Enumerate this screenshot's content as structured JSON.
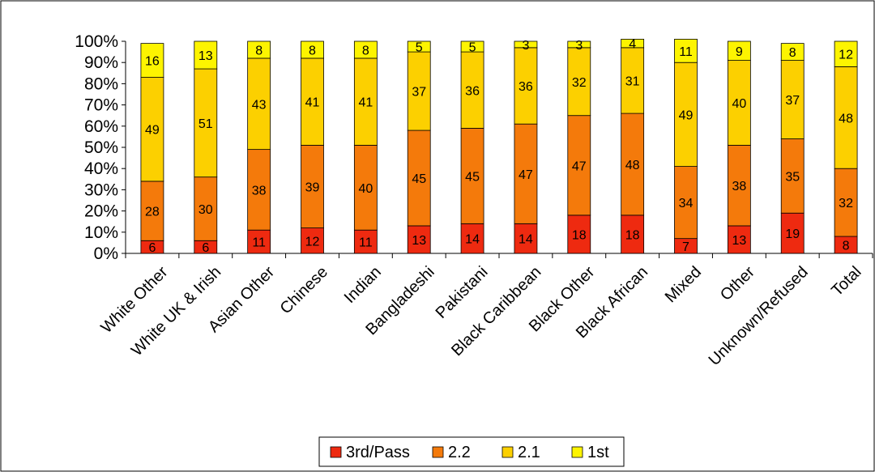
{
  "chart_data": {
    "type": "bar",
    "stacked": true,
    "percent_stacked": true,
    "categories": [
      "White Other",
      "White UK & Irish",
      "Asian Other",
      "Chinese",
      "Indian",
      "Bangladeshi",
      "Pakistani",
      "Black Caribbean",
      "Black Other",
      "Black African",
      "Mixed",
      "Other",
      "Unknown/Refused",
      "Total"
    ],
    "series": [
      {
        "name": "3rd/Pass",
        "color": "#ee2a10",
        "values": [
          6,
          6,
          11,
          12,
          11,
          13,
          14,
          14,
          18,
          18,
          7,
          13,
          19,
          8
        ]
      },
      {
        "name": "2.2",
        "color": "#f47a0b",
        "values": [
          28,
          30,
          38,
          39,
          40,
          45,
          45,
          47,
          47,
          48,
          34,
          38,
          35,
          32
        ]
      },
      {
        "name": "2.1",
        "color": "#fcd000",
        "values": [
          49,
          51,
          43,
          41,
          41,
          37,
          36,
          36,
          32,
          31,
          49,
          40,
          37,
          48
        ]
      },
      {
        "name": "1st",
        "color": "#fdf400",
        "values": [
          16,
          13,
          8,
          8,
          8,
          5,
          5,
          3,
          3,
          4,
          11,
          9,
          8,
          12
        ]
      }
    ],
    "y_ticks": [
      "0%",
      "10%",
      "20%",
      "30%",
      "40%",
      "50%",
      "60%",
      "70%",
      "80%",
      "90%",
      "100%"
    ],
    "ylim": [
      0,
      100
    ],
    "legend_position": "bottom",
    "grid": false
  }
}
